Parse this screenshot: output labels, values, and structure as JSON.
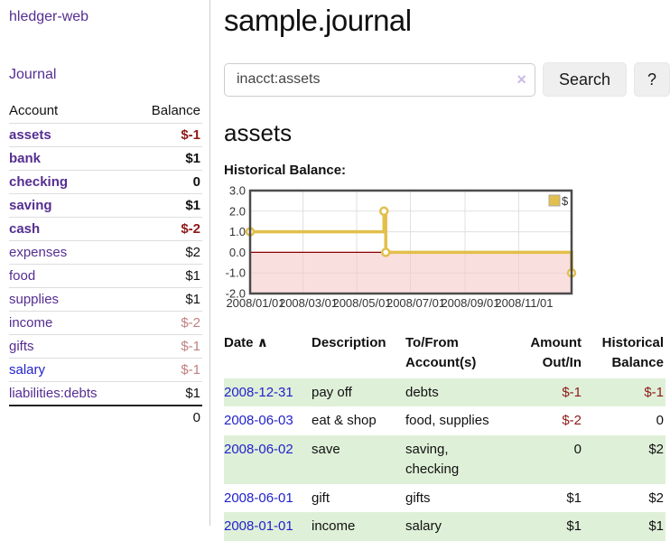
{
  "app": {
    "brand": "hledger-web"
  },
  "sidebar": {
    "journal_link": "Journal",
    "accounts_table": {
      "headers": {
        "account": "Account",
        "balance": "Balance"
      },
      "rows": [
        {
          "account": "assets",
          "level": 1,
          "bold": true,
          "balance": "$-1",
          "balance_class": "neg",
          "link_class": "purple"
        },
        {
          "account": "bank",
          "level": 2,
          "bold": true,
          "balance": "$1",
          "balance_class": "",
          "link_class": "purple"
        },
        {
          "account": "checking",
          "level": 3,
          "bold": true,
          "balance": "0",
          "balance_class": "",
          "link_class": "purple"
        },
        {
          "account": "saving",
          "level": 3,
          "bold": true,
          "balance": "$1",
          "balance_class": "",
          "link_class": "purple"
        },
        {
          "account": "cash",
          "level": 2,
          "bold": true,
          "balance": "$-2",
          "balance_class": "neg",
          "link_class": "purple"
        },
        {
          "account": "expenses",
          "level": 1,
          "bold": false,
          "balance": "$2",
          "balance_class": "",
          "link_class": "purple"
        },
        {
          "account": "food",
          "level": 2,
          "bold": false,
          "balance": "$1",
          "balance_class": "",
          "link_class": "purple"
        },
        {
          "account": "supplies",
          "level": 2,
          "bold": false,
          "balance": "$1",
          "balance_class": "",
          "link_class": "purple"
        },
        {
          "account": "income",
          "level": 1,
          "bold": false,
          "balance": "$-2",
          "balance_class": "negsoft",
          "link_class": "purple"
        },
        {
          "account": "gifts",
          "level": 2,
          "bold": false,
          "balance": "$-1",
          "balance_class": "negsoft",
          "link_class": "purple"
        },
        {
          "account": "salary",
          "level": 2,
          "bold": false,
          "balance": "$-1",
          "balance_class": "negsoft",
          "link_class": "blue"
        },
        {
          "account": "liabilities:debts",
          "level": 1,
          "bold": false,
          "balance": "$1",
          "balance_class": "",
          "link_class": "purple"
        }
      ],
      "total": "0"
    }
  },
  "header": {
    "title": "sample.journal"
  },
  "search": {
    "value": "inacct:assets",
    "clear_icon": "×",
    "button_label": "Search",
    "help_label": "?"
  },
  "account_page": {
    "heading": "assets",
    "chart_label": "Historical Balance:"
  },
  "chart_data": {
    "type": "line",
    "title": "Historical Balance",
    "legend": [
      {
        "label": "$",
        "color": "#e3bf4b"
      }
    ],
    "legend_position": "top-right",
    "grid": true,
    "ylim": [
      -2,
      3
    ],
    "y_ticks": [
      "3.0",
      "2.0",
      "1.0",
      "0.0",
      "-1.0",
      "-2.0"
    ],
    "y_tick_values": [
      3,
      2,
      1,
      0,
      -1,
      -2
    ],
    "xlim_days": [
      0,
      365
    ],
    "x_ticks": [
      {
        "day": 0,
        "label": "2008/01/01"
      },
      {
        "day": 60,
        "label": "2008/03/01"
      },
      {
        "day": 121,
        "label": "2008/05/01"
      },
      {
        "day": 182,
        "label": "2008/07/01"
      },
      {
        "day": 244,
        "label": "2008/09/01"
      },
      {
        "day": 305,
        "label": "2008/11/01"
      }
    ],
    "series": [
      {
        "name": "$",
        "points": [
          [
            "2008-01-01",
            1
          ],
          [
            "2008-06-01",
            2
          ],
          [
            "2008-06-02",
            2
          ],
          [
            "2008-06-03",
            0
          ],
          [
            "2008-12-31",
            -1
          ]
        ],
        "path_days": [
          [
            0,
            1
          ],
          [
            152,
            1
          ],
          [
            152,
            2
          ],
          [
            154,
            2
          ],
          [
            154,
            0
          ],
          [
            365,
            0
          ],
          [
            365,
            -1
          ]
        ],
        "marker_days": [
          [
            0,
            1
          ],
          [
            152,
            2
          ],
          [
            154,
            0
          ],
          [
            365,
            -1
          ]
        ]
      }
    ],
    "colors": {
      "line": "#e3bf4b",
      "marker_fill": "#ffffff",
      "negative_fill": "#f6c9c9",
      "zero_line": "#8b0000",
      "grid": "#e0e0e0",
      "border": "#4b4b4b",
      "tick_text": "#333333"
    }
  },
  "register": {
    "headers": {
      "date": "Date",
      "sort_icon": "∧",
      "description": "Description",
      "accounts": "To/From Account(s)",
      "amount": "Amount Out/In",
      "balance": "Historical Balance"
    },
    "rows": [
      {
        "date": "2008-12-31",
        "description": "pay off",
        "accounts": "debts",
        "amount": "$-1",
        "balance": "$-1"
      },
      {
        "date": "2008-06-03",
        "description": "eat & shop",
        "accounts": "food, supplies",
        "amount": "$-2",
        "balance": "0"
      },
      {
        "date": "2008-06-02",
        "description": "save",
        "accounts": "saving, checking",
        "amount": "0",
        "balance": "$2"
      },
      {
        "date": "2008-06-01",
        "description": "gift",
        "accounts": "gifts",
        "amount": "$1",
        "balance": "$2"
      },
      {
        "date": "2008-01-01",
        "description": "income",
        "accounts": "salary",
        "amount": "$1",
        "balance": "$1"
      }
    ]
  }
}
